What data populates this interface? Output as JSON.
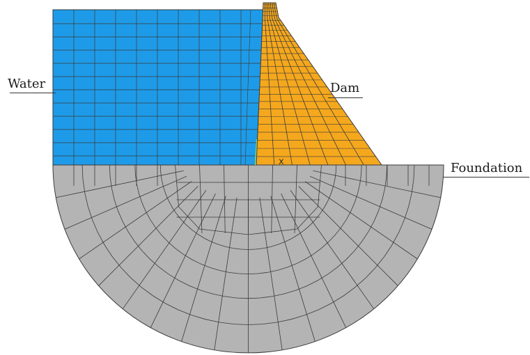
{
  "labels": {
    "water": "Water",
    "dam": "Dam",
    "foundation": "Foundation",
    "origin_marker": "x"
  },
  "colors": {
    "water": "#1e9be8",
    "dam": "#f5a81d",
    "foundation": "#b4b4b4",
    "interface": "#9fe05a",
    "mesh_line": "#3a3a3a"
  }
}
